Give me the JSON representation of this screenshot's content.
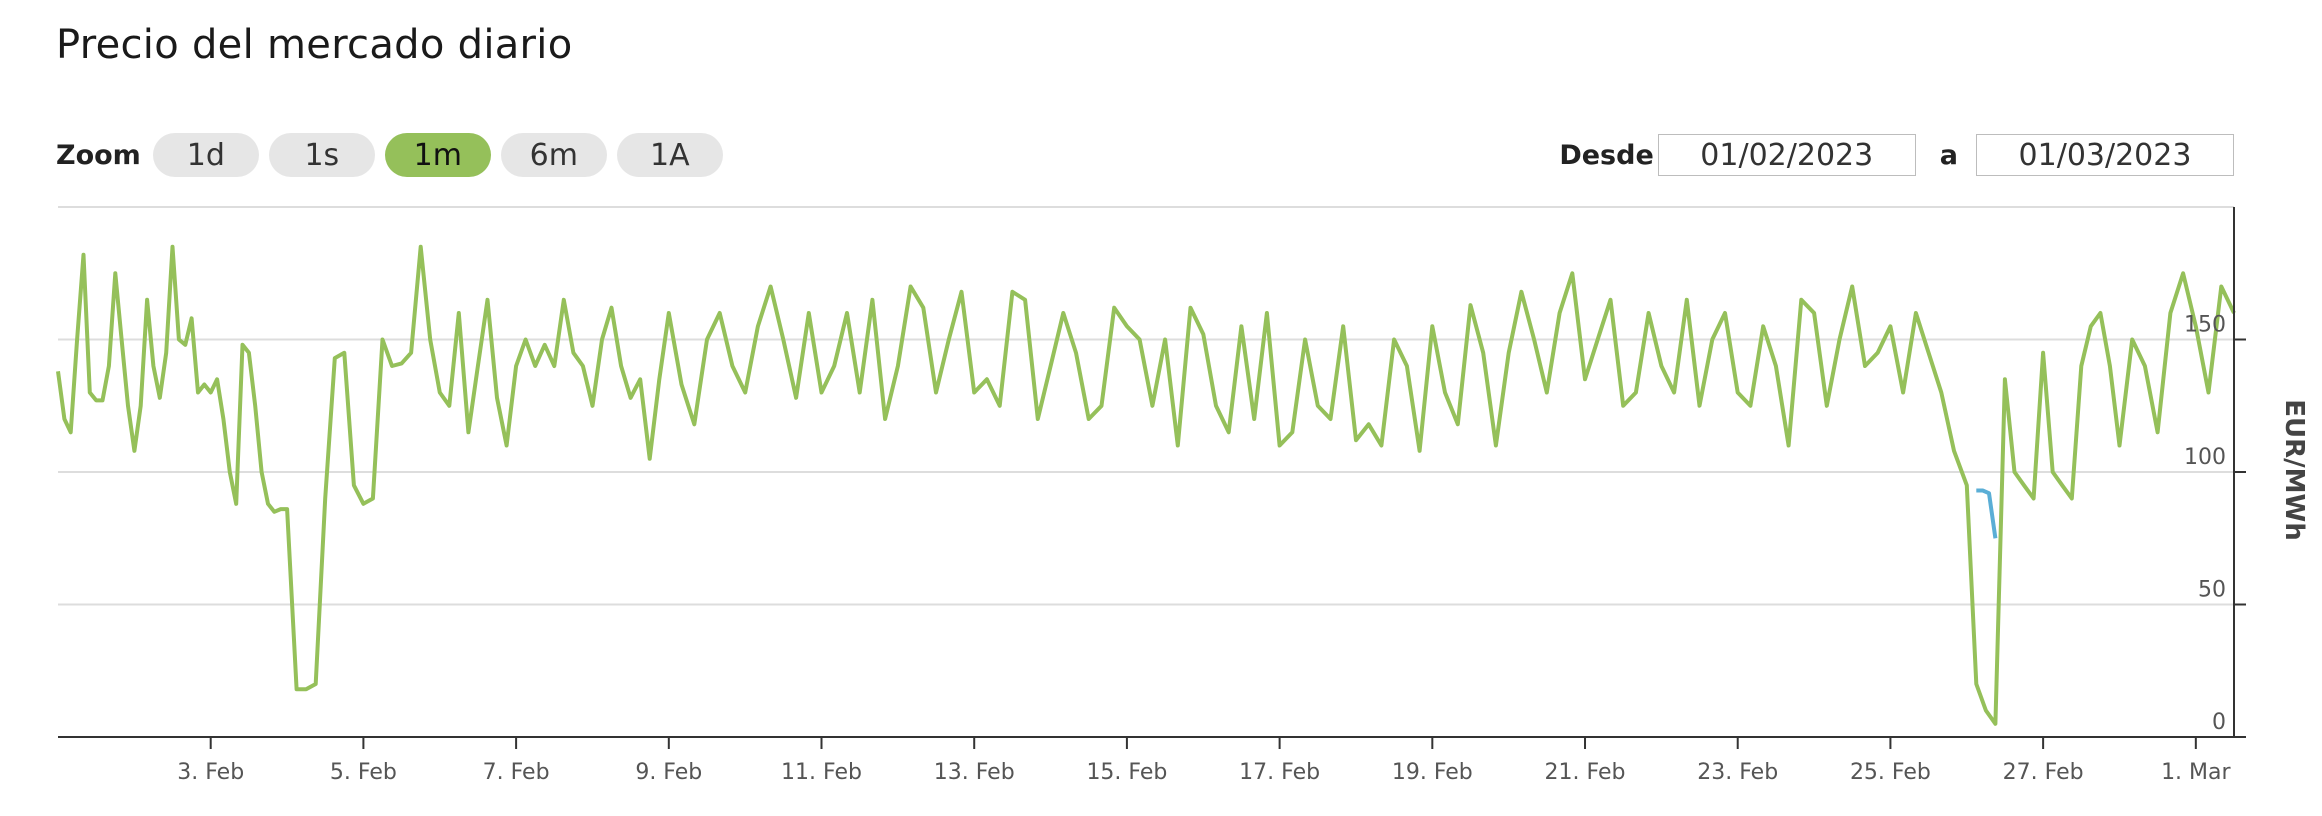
{
  "title": "Precio del mercado diario",
  "zoom": {
    "label": "Zoom",
    "buttons": [
      {
        "label": "1d",
        "active": false
      },
      {
        "label": "1s",
        "active": false
      },
      {
        "label": "1m",
        "active": true
      },
      {
        "label": "6m",
        "active": false
      },
      {
        "label": "1A",
        "active": false
      }
    ]
  },
  "range": {
    "from_label": "Desde",
    "from_value": "01/02/2023",
    "to_label": "a",
    "to_value": "01/03/2023"
  },
  "colors": {
    "series": "#95c05a",
    "highlight": "#5aaed6",
    "active_button": "#95c05a",
    "grid": "#dddddd",
    "axis": "#333333"
  },
  "chart_data": {
    "type": "line",
    "title": "",
    "xlabel": "",
    "ylabel": "EUR/MWh",
    "ylim": [
      0,
      200
    ],
    "xlim": [
      "2023-02-01T00:00",
      "2023-03-01T12:00"
    ],
    "yticks": [
      0,
      50,
      100,
      150
    ],
    "xticks": [
      {
        "label": "3. Feb",
        "date": "2023-02-03"
      },
      {
        "label": "5. Feb",
        "date": "2023-02-05"
      },
      {
        "label": "7. Feb",
        "date": "2023-02-07"
      },
      {
        "label": "9. Feb",
        "date": "2023-02-09"
      },
      {
        "label": "11. Feb",
        "date": "2023-02-11"
      },
      {
        "label": "13. Feb",
        "date": "2023-02-13"
      },
      {
        "label": "15. Feb",
        "date": "2023-02-15"
      },
      {
        "label": "17. Feb",
        "date": "2023-02-17"
      },
      {
        "label": "19. Feb",
        "date": "2023-02-19"
      },
      {
        "label": "21. Feb",
        "date": "2023-02-21"
      },
      {
        "label": "23. Feb",
        "date": "2023-02-23"
      },
      {
        "label": "25. Feb",
        "date": "2023-02-25"
      },
      {
        "label": "27. Feb",
        "date": "2023-02-27"
      },
      {
        "label": "1. Mar",
        "date": "2023-03-01"
      }
    ],
    "grid": true,
    "legend": "none",
    "series": [
      {
        "x": [
          "2023-02-01T00:00",
          "2023-02-01T02:00",
          "2023-02-01T04:00",
          "2023-02-01T06:00",
          "2023-02-01T08:00",
          "2023-02-01T10:00",
          "2023-02-01T12:00",
          "2023-02-01T14:00",
          "2023-02-01T16:00",
          "2023-02-01T18:00",
          "2023-02-01T20:00",
          "2023-02-01T22:00",
          "2023-02-02T00:00",
          "2023-02-02T02:00",
          "2023-02-02T04:00",
          "2023-02-02T06:00",
          "2023-02-02T08:00",
          "2023-02-02T10:00",
          "2023-02-02T12:00",
          "2023-02-02T14:00",
          "2023-02-02T16:00",
          "2023-02-02T18:00",
          "2023-02-02T20:00",
          "2023-02-02T22:00",
          "2023-02-03T00:00",
          "2023-02-03T02:00",
          "2023-02-03T04:00",
          "2023-02-03T06:00",
          "2023-02-03T08:00",
          "2023-02-03T10:00",
          "2023-02-03T12:00",
          "2023-02-03T14:00",
          "2023-02-03T16:00",
          "2023-02-03T18:00",
          "2023-02-03T20:00",
          "2023-02-03T22:00",
          "2023-02-04T00:00",
          "2023-02-04T03:00",
          "2023-02-04T06:00",
          "2023-02-04T09:00",
          "2023-02-04T12:00",
          "2023-02-04T15:00",
          "2023-02-04T18:00",
          "2023-02-04T21:00",
          "2023-02-05T00:00",
          "2023-02-05T03:00",
          "2023-02-05T06:00",
          "2023-02-05T09:00",
          "2023-02-05T12:00",
          "2023-02-05T15:00",
          "2023-02-05T18:00",
          "2023-02-05T21:00",
          "2023-02-06T00:00",
          "2023-02-06T03:00",
          "2023-02-06T06:00",
          "2023-02-06T09:00",
          "2023-02-06T12:00",
          "2023-02-06T15:00",
          "2023-02-06T18:00",
          "2023-02-06T21:00",
          "2023-02-07T00:00",
          "2023-02-07T03:00",
          "2023-02-07T06:00",
          "2023-02-07T09:00",
          "2023-02-07T12:00",
          "2023-02-07T15:00",
          "2023-02-07T18:00",
          "2023-02-07T21:00",
          "2023-02-08T00:00",
          "2023-02-08T03:00",
          "2023-02-08T06:00",
          "2023-02-08T09:00",
          "2023-02-08T12:00",
          "2023-02-08T15:00",
          "2023-02-08T18:00",
          "2023-02-08T21:00",
          "2023-02-09T00:00",
          "2023-02-09T04:00",
          "2023-02-09T08:00",
          "2023-02-09T12:00",
          "2023-02-09T16:00",
          "2023-02-09T20:00",
          "2023-02-10T00:00",
          "2023-02-10T04:00",
          "2023-02-10T08:00",
          "2023-02-10T12:00",
          "2023-02-10T16:00",
          "2023-02-10T20:00",
          "2023-02-11T00:00",
          "2023-02-11T04:00",
          "2023-02-11T08:00",
          "2023-02-11T12:00",
          "2023-02-11T16:00",
          "2023-02-11T20:00",
          "2023-02-12T00:00",
          "2023-02-12T04:00",
          "2023-02-12T08:00",
          "2023-02-12T12:00",
          "2023-02-12T16:00",
          "2023-02-12T20:00",
          "2023-02-13T00:00",
          "2023-02-13T04:00",
          "2023-02-13T08:00",
          "2023-02-13T12:00",
          "2023-02-13T16:00",
          "2023-02-13T20:00",
          "2023-02-14T00:00",
          "2023-02-14T04:00",
          "2023-02-14T08:00",
          "2023-02-14T12:00",
          "2023-02-14T16:00",
          "2023-02-14T20:00",
          "2023-02-15T00:00",
          "2023-02-15T04:00",
          "2023-02-15T08:00",
          "2023-02-15T12:00",
          "2023-02-15T16:00",
          "2023-02-15T20:00",
          "2023-02-16T00:00",
          "2023-02-16T04:00",
          "2023-02-16T08:00",
          "2023-02-16T12:00",
          "2023-02-16T16:00",
          "2023-02-16T20:00",
          "2023-02-17T00:00",
          "2023-02-17T04:00",
          "2023-02-17T08:00",
          "2023-02-17T12:00",
          "2023-02-17T16:00",
          "2023-02-17T20:00",
          "2023-02-18T00:00",
          "2023-02-18T04:00",
          "2023-02-18T08:00",
          "2023-02-18T12:00",
          "2023-02-18T16:00",
          "2023-02-18T20:00",
          "2023-02-19T00:00",
          "2023-02-19T04:00",
          "2023-02-19T08:00",
          "2023-02-19T12:00",
          "2023-02-19T16:00",
          "2023-02-19T20:00",
          "2023-02-20T00:00",
          "2023-02-20T04:00",
          "2023-02-20T08:00",
          "2023-02-20T12:00",
          "2023-02-20T16:00",
          "2023-02-20T20:00",
          "2023-02-21T00:00",
          "2023-02-21T04:00",
          "2023-02-21T08:00",
          "2023-02-21T12:00",
          "2023-02-21T16:00",
          "2023-02-21T20:00",
          "2023-02-22T00:00",
          "2023-02-22T04:00",
          "2023-02-22T08:00",
          "2023-02-22T12:00",
          "2023-02-22T16:00",
          "2023-02-22T20:00",
          "2023-02-23T00:00",
          "2023-02-23T04:00",
          "2023-02-23T08:00",
          "2023-02-23T12:00",
          "2023-02-23T16:00",
          "2023-02-23T20:00",
          "2023-02-24T00:00",
          "2023-02-24T04:00",
          "2023-02-24T08:00",
          "2023-02-24T12:00",
          "2023-02-24T16:00",
          "2023-02-24T20:00",
          "2023-02-25T00:00",
          "2023-02-25T04:00",
          "2023-02-25T08:00",
          "2023-02-25T12:00",
          "2023-02-25T16:00",
          "2023-02-25T20:00",
          "2023-02-26T00:00",
          "2023-02-26T03:00",
          "2023-02-26T06:00",
          "2023-02-26T09:00",
          "2023-02-26T12:00",
          "2023-02-26T15:00",
          "2023-02-26T18:00",
          "2023-02-26T21:00",
          "2023-02-27T00:00",
          "2023-02-27T03:00",
          "2023-02-27T06:00",
          "2023-02-27T09:00",
          "2023-02-27T12:00",
          "2023-02-27T15:00",
          "2023-02-27T18:00",
          "2023-02-27T21:00",
          "2023-02-28T00:00",
          "2023-02-28T04:00",
          "2023-02-28T08:00",
          "2023-02-28T12:00",
          "2023-02-28T16:00",
          "2023-02-28T20:00",
          "2023-03-01T00:00",
          "2023-03-01T04:00",
          "2023-03-01T08:00",
          "2023-03-01T12:00"
        ],
        "values": [
          138,
          120,
          115,
          150,
          182,
          130,
          127,
          127,
          140,
          175,
          150,
          125,
          108,
          125,
          165,
          140,
          128,
          145,
          185,
          150,
          148,
          158,
          130,
          133,
          130,
          135,
          120,
          100,
          88,
          148,
          145,
          125,
          100,
          88,
          85,
          86,
          86,
          18,
          18,
          20,
          90,
          143,
          145,
          95,
          88,
          90,
          150,
          140,
          141,
          145,
          185,
          150,
          130,
          125,
          160,
          115,
          140,
          165,
          128,
          110,
          140,
          150,
          140,
          148,
          140,
          165,
          145,
          140,
          125,
          150,
          162,
          140,
          128,
          135,
          105,
          135,
          160,
          133,
          118,
          150,
          160,
          140,
          130,
          155,
          170,
          150,
          128,
          160,
          130,
          140,
          160,
          130,
          165,
          120,
          140,
          170,
          162,
          130,
          150,
          168,
          130,
          135,
          125,
          168,
          165,
          120,
          140,
          160,
          145,
          120,
          125,
          162,
          155,
          150,
          125,
          150,
          110,
          162,
          152,
          125,
          115,
          155,
          120,
          160,
          110,
          115,
          150,
          125,
          120,
          155,
          112,
          118,
          110,
          150,
          140,
          108,
          155,
          130,
          118,
          163,
          145,
          110,
          145,
          168,
          150,
          130,
          160,
          175,
          135,
          150,
          165,
          125,
          130,
          160,
          140,
          130,
          165,
          125,
          150,
          160,
          130,
          125,
          155,
          140,
          110,
          165,
          160,
          125,
          150,
          170,
          140,
          145,
          155,
          130,
          160,
          145,
          130,
          108,
          95,
          20,
          10,
          5,
          135,
          100,
          95,
          90,
          145,
          100,
          95,
          90,
          140,
          155,
          160,
          140,
          110,
          150,
          140,
          115,
          160,
          175,
          155,
          130,
          170,
          160
        ]
      }
    ],
    "highlight_segment": {
      "x": [
        "2023-02-26T03:00",
        "2023-02-26T05:00",
        "2023-02-26T07:00",
        "2023-02-26T09:00"
      ],
      "values": [
        93,
        93,
        92,
        75
      ]
    }
  }
}
